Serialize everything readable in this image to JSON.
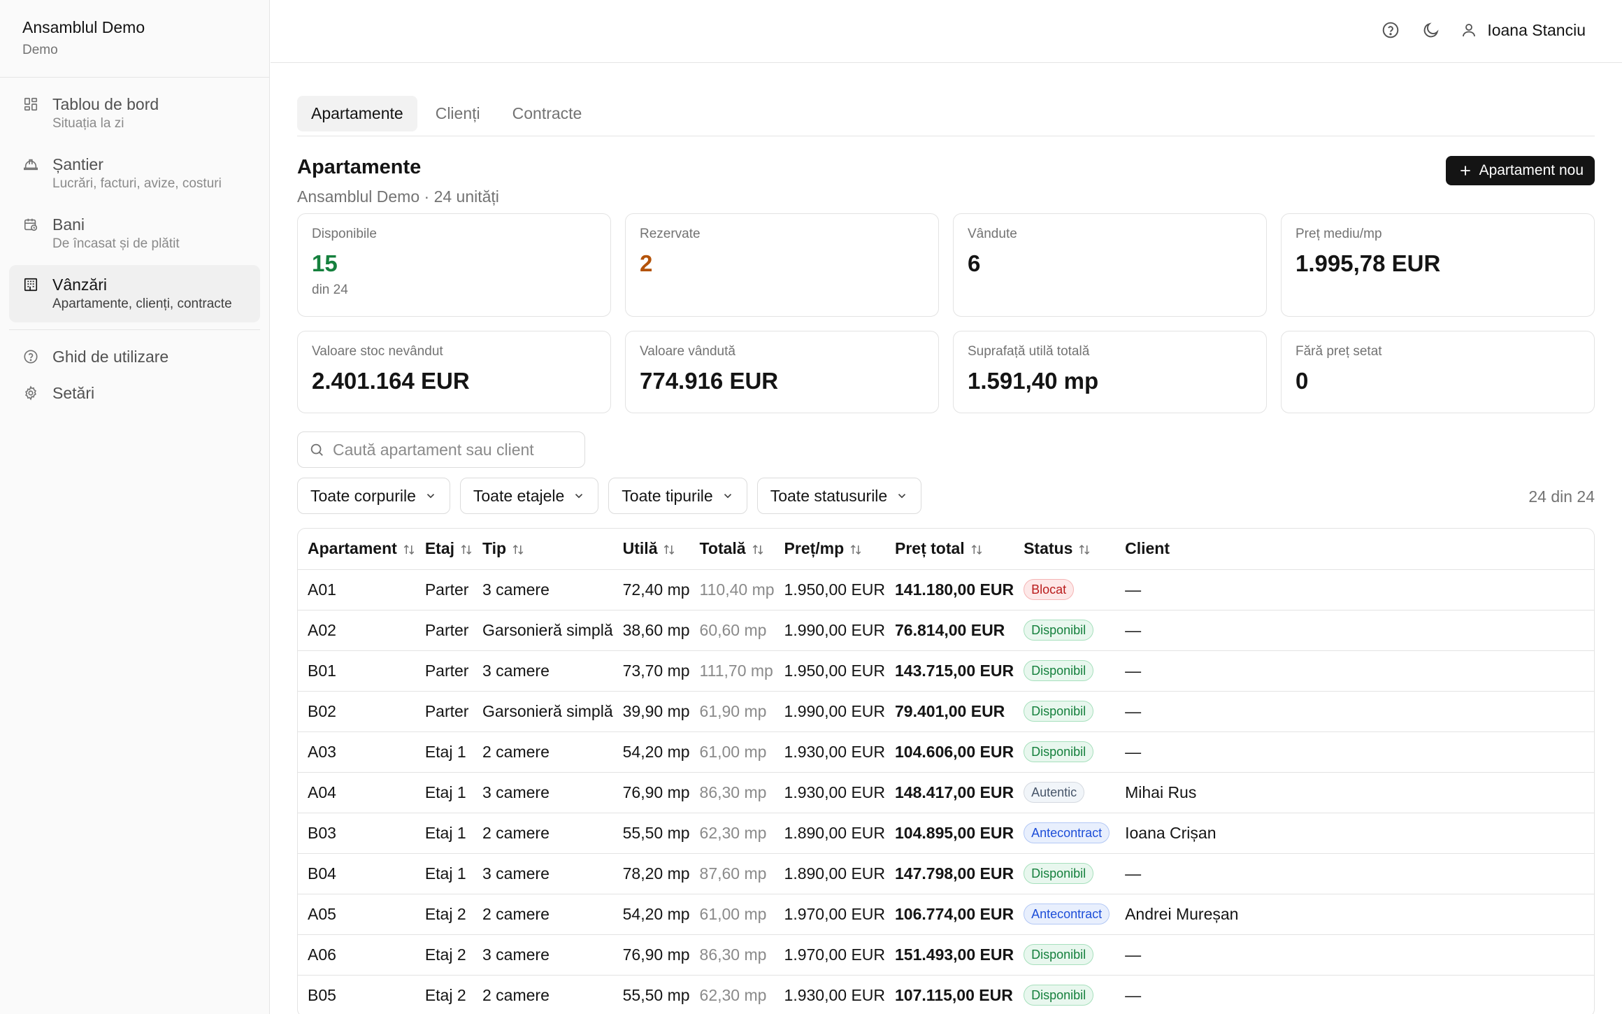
{
  "sidebar": {
    "brand_title": "Ansamblul Demo",
    "brand_sub": "Demo",
    "items": [
      {
        "label": "Tablou de bord",
        "sub": "Situația la zi",
        "icon": "dashboard-icon"
      },
      {
        "label": "Șantier",
        "sub": "Lucrări, facturi, avize, costuri",
        "icon": "hardhat-icon"
      },
      {
        "label": "Bani",
        "sub": "De încasat și de plătit",
        "icon": "calendar-money-icon"
      },
      {
        "label": "Vânzări",
        "sub": "Apartamente, clienți, contracte",
        "icon": "building-icon"
      }
    ],
    "guide_label": "Ghid de utilizare",
    "settings_label": "Setări"
  },
  "header": {
    "user_name": "Ioana Stanciu"
  },
  "tabs": [
    "Apartamente",
    "Clienți",
    "Contracte"
  ],
  "page": {
    "title": "Apartamente",
    "subtitle": "Ansamblul Demo · 24 unități",
    "new_button": "Apartament nou"
  },
  "stats": [
    {
      "label": "Disponibile",
      "value": "15",
      "hint": "din 24"
    },
    {
      "label": "Rezervate",
      "value": "2"
    },
    {
      "label": "Vândute",
      "value": "6"
    },
    {
      "label": "Preț mediu/mp",
      "value": "1.995,78 EUR"
    },
    {
      "label": "Valoare stoc nevândut",
      "value": "2.401.164 EUR"
    },
    {
      "label": "Valoare vândută",
      "value": "774.916 EUR"
    },
    {
      "label": "Suprafață utilă totală",
      "value": "1.591,40 mp"
    },
    {
      "label": "Fără preț setat",
      "value": "0"
    }
  ],
  "search": {
    "placeholder": "Caută apartament sau client"
  },
  "filters": {
    "corp": "Toate corpurile",
    "etaj": "Toate etajele",
    "tip": "Toate tipurile",
    "status": "Toate statusurile",
    "count": "24 din 24"
  },
  "table": {
    "columns": [
      "Apartament",
      "Etaj",
      "Tip",
      "Utilă",
      "Totală",
      "Preț/mp",
      "Preț total",
      "Status",
      "Client"
    ],
    "rows": [
      [
        "A01",
        "Parter",
        "3 camere",
        "72,40 mp",
        "110,40 mp",
        "1.950,00 EUR",
        "141.180,00 EUR",
        "Blocat",
        "—"
      ],
      [
        "A02",
        "Parter",
        "Garsonieră simplă",
        "38,60 mp",
        "60,60 mp",
        "1.990,00 EUR",
        "76.814,00 EUR",
        "Disponibil",
        "—"
      ],
      [
        "B01",
        "Parter",
        "3 camere",
        "73,70 mp",
        "111,70 mp",
        "1.950,00 EUR",
        "143.715,00 EUR",
        "Disponibil",
        "—"
      ],
      [
        "B02",
        "Parter",
        "Garsonieră simplă",
        "39,90 mp",
        "61,90 mp",
        "1.990,00 EUR",
        "79.401,00 EUR",
        "Disponibil",
        "—"
      ],
      [
        "A03",
        "Etaj 1",
        "2 camere",
        "54,20 mp",
        "61,00 mp",
        "1.930,00 EUR",
        "104.606,00 EUR",
        "Disponibil",
        "—"
      ],
      [
        "A04",
        "Etaj 1",
        "3 camere",
        "76,90 mp",
        "86,30 mp",
        "1.930,00 EUR",
        "148.417,00 EUR",
        "Autentic",
        "Mihai Rus"
      ],
      [
        "B03",
        "Etaj 1",
        "2 camere",
        "55,50 mp",
        "62,30 mp",
        "1.890,00 EUR",
        "104.895,00 EUR",
        "Antecontract",
        "Ioana Crișan"
      ],
      [
        "B04",
        "Etaj 1",
        "3 camere",
        "78,20 mp",
        "87,60 mp",
        "1.890,00 EUR",
        "147.798,00 EUR",
        "Disponibil",
        "—"
      ],
      [
        "A05",
        "Etaj 2",
        "2 camere",
        "54,20 mp",
        "61,00 mp",
        "1.970,00 EUR",
        "106.774,00 EUR",
        "Antecontract",
        "Andrei Mureșan"
      ],
      [
        "A06",
        "Etaj 2",
        "3 camere",
        "76,90 mp",
        "86,30 mp",
        "1.970,00 EUR",
        "151.493,00 EUR",
        "Disponibil",
        "—"
      ],
      [
        "B05",
        "Etaj 2",
        "2 camere",
        "55,50 mp",
        "62,30 mp",
        "1.930,00 EUR",
        "107.115,00 EUR",
        "Disponibil",
        "—"
      ]
    ]
  },
  "colors": {
    "available_green": "#15803d",
    "reserved_amber": "#b45309",
    "primary_button": "#141414"
  }
}
